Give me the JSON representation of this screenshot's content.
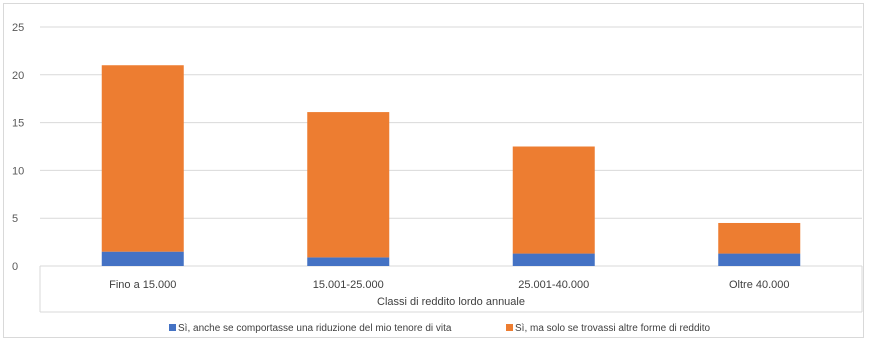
{
  "chart_data": {
    "type": "bar",
    "stacked": true,
    "title": "",
    "ylabel": "",
    "xlabel": "Classi di reddito lordo annuale",
    "categories": [
      "Fino a 15.000",
      "15.001-25.000",
      "25.001-40.000",
      "Oltre 40.000"
    ],
    "ylim": [
      0,
      25
    ],
    "yticks": [
      0,
      5,
      10,
      15,
      20,
      25
    ],
    "grid": true,
    "legend_position": "bottom",
    "series": [
      {
        "name": "Sì, anche se comportasse una riduzione del mio tenore di vita",
        "color": "#4472c4",
        "values": [
          1.5,
          0.9,
          1.3,
          1.3
        ]
      },
      {
        "name": "Sì, ma solo se trovassi altre forme di reddito",
        "color": "#ed7d31",
        "values": [
          19.5,
          15.2,
          11.2,
          3.2
        ]
      }
    ]
  }
}
